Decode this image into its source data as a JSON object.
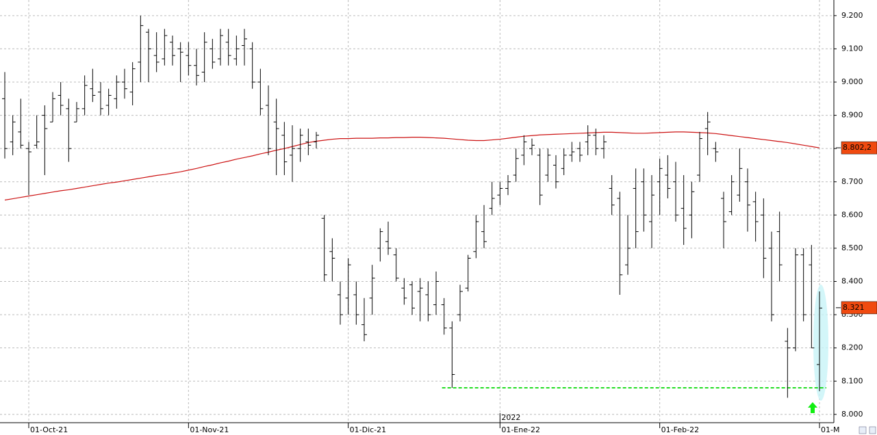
{
  "chart_data": {
    "type": "ohlc",
    "categories": [
      null,
      null,
      null,
      "01-Oct-21",
      null,
      null,
      null,
      null,
      null,
      null,
      null,
      null,
      null,
      null,
      null,
      null,
      null,
      null,
      null,
      null,
      null,
      null,
      null,
      "01-Nov-21",
      null,
      null,
      null,
      null,
      null,
      null,
      null,
      null,
      null,
      null,
      null,
      null,
      null,
      null,
      null,
      null,
      null,
      null,
      null,
      "01-Dic-21",
      null,
      null,
      null,
      null,
      null,
      null,
      null,
      null,
      null,
      null,
      null,
      null,
      null,
      null,
      null,
      null,
      null,
      null,
      "01-Ene-22",
      null,
      null,
      null,
      null,
      null,
      null,
      null,
      null,
      null,
      null,
      null,
      null,
      null,
      null,
      null,
      null,
      null,
      null,
      null,
      "01-Feb-22",
      null,
      null,
      null,
      null,
      null,
      null,
      null,
      null,
      null,
      null,
      null,
      null,
      null,
      null,
      null,
      null,
      null,
      null,
      null,
      "01-M"
    ],
    "year_label": "2022",
    "ohlc": [
      [
        8.95,
        9.03,
        8.77,
        8.8
      ],
      [
        8.82,
        8.9,
        8.78,
        8.88
      ],
      [
        8.85,
        8.95,
        8.8,
        8.81
      ],
      [
        8.8,
        8.82,
        8.66,
        8.79
      ],
      [
        8.81,
        8.9,
        8.8,
        8.82
      ],
      [
        8.9,
        8.93,
        8.72,
        8.86
      ],
      [
        8.88,
        8.97,
        8.88,
        8.95
      ],
      [
        8.96,
        9.0,
        8.9,
        8.93
      ],
      [
        8.92,
        8.95,
        8.76,
        8.8
      ],
      [
        8.88,
        8.94,
        8.88,
        8.92
      ],
      [
        8.92,
        9.02,
        8.9,
        8.99
      ],
      [
        8.98,
        9.04,
        8.94,
        8.96
      ],
      [
        8.97,
        9.0,
        8.9,
        8.92
      ],
      [
        8.93,
        8.98,
        8.9,
        8.96
      ],
      [
        8.95,
        9.02,
        8.92,
        9.0
      ],
      [
        9.0,
        9.04,
        8.95,
        8.98
      ],
      [
        8.97,
        9.06,
        8.93,
        9.04
      ],
      [
        9.06,
        9.2,
        9.0,
        9.17
      ],
      [
        9.15,
        9.16,
        9.0,
        9.1
      ],
      [
        9.08,
        9.15,
        9.03,
        9.06
      ],
      [
        9.07,
        9.16,
        9.05,
        9.14
      ],
      [
        9.12,
        9.14,
        9.05,
        9.08
      ],
      [
        9.1,
        9.12,
        9.0,
        9.09
      ],
      [
        9.08,
        9.12,
        9.02,
        9.05
      ],
      [
        9.05,
        9.1,
        8.99,
        9.02
      ],
      [
        9.03,
        9.15,
        9.0,
        9.12
      ],
      [
        9.1,
        9.13,
        9.04,
        9.06
      ],
      [
        9.07,
        9.16,
        9.05,
        9.14
      ],
      [
        9.12,
        9.16,
        9.05,
        9.08
      ],
      [
        9.07,
        9.14,
        9.05,
        9.1
      ],
      [
        9.11,
        9.16,
        9.05,
        9.13
      ],
      [
        9.1,
        9.12,
        8.98,
        9.0
      ],
      [
        9.0,
        9.04,
        8.9,
        8.92
      ],
      [
        8.93,
        8.99,
        8.78,
        8.8
      ],
      [
        8.88,
        8.95,
        8.72,
        8.86
      ],
      [
        8.84,
        8.88,
        8.72,
        8.76
      ],
      [
        8.78,
        8.87,
        8.7,
        8.8
      ],
      [
        8.8,
        8.86,
        8.76,
        8.84
      ],
      [
        8.82,
        8.86,
        8.78,
        8.81
      ],
      [
        8.82,
        8.85,
        8.8,
        8.84
      ],
      [
        8.59,
        8.6,
        8.4,
        8.42
      ],
      [
        8.49,
        8.53,
        8.4,
        8.47
      ],
      [
        8.36,
        8.4,
        8.27,
        8.3
      ],
      [
        8.35,
        8.47,
        8.3,
        8.45
      ],
      [
        8.36,
        8.4,
        8.27,
        8.3
      ],
      [
        8.27,
        8.35,
        8.22,
        8.24
      ],
      [
        8.35,
        8.45,
        8.3,
        8.41
      ],
      [
        8.5,
        8.56,
        8.46,
        8.55
      ],
      [
        8.52,
        8.58,
        8.48,
        8.5
      ],
      [
        8.48,
        8.5,
        8.4,
        8.41
      ],
      [
        8.38,
        8.41,
        8.33,
        8.35
      ],
      [
        8.39,
        8.4,
        8.3,
        8.32
      ],
      [
        8.37,
        8.41,
        8.28,
        8.38
      ],
      [
        8.36,
        8.4,
        8.28,
        8.3
      ],
      [
        8.33,
        8.43,
        8.3,
        8.4
      ],
      [
        8.33,
        8.35,
        8.24,
        8.26
      ],
      [
        8.26,
        8.28,
        8.08,
        8.12
      ],
      [
        8.3,
        8.39,
        8.28,
        8.37
      ],
      [
        8.38,
        8.48,
        8.37,
        8.47
      ],
      [
        8.49,
        8.6,
        8.47,
        8.58
      ],
      [
        8.55,
        8.63,
        8.5,
        8.52
      ],
      [
        8.62,
        8.7,
        8.6,
        8.65
      ],
      [
        8.66,
        8.7,
        8.63,
        8.68
      ],
      [
        8.68,
        8.72,
        8.66,
        8.7
      ],
      [
        8.72,
        8.8,
        8.7,
        8.77
      ],
      [
        8.78,
        8.84,
        8.75,
        8.82
      ],
      [
        8.8,
        8.83,
        8.78,
        8.81
      ],
      [
        8.78,
        8.8,
        8.63,
        8.66
      ],
      [
        8.72,
        8.8,
        8.7,
        8.78
      ],
      [
        8.75,
        8.78,
        8.68,
        8.7
      ],
      [
        8.74,
        8.8,
        8.72,
        8.78
      ],
      [
        8.78,
        8.82,
        8.76,
        8.79
      ],
      [
        8.8,
        8.82,
        8.76,
        8.78
      ],
      [
        8.82,
        8.87,
        8.78,
        8.84
      ],
      [
        8.84,
        8.86,
        8.78,
        8.8
      ],
      [
        8.8,
        8.84,
        8.77,
        8.82
      ],
      [
        8.68,
        8.72,
        8.6,
        8.63
      ],
      [
        8.65,
        8.67,
        8.36,
        8.42
      ],
      [
        8.45,
        8.6,
        8.42,
        8.5
      ],
      [
        8.68,
        8.74,
        8.5,
        8.55
      ],
      [
        8.7,
        8.74,
        8.55,
        8.6
      ],
      [
        8.58,
        8.72,
        8.5,
        8.66
      ],
      [
        8.7,
        8.77,
        8.6,
        8.74
      ],
      [
        8.72,
        8.78,
        8.65,
        8.68
      ],
      [
        8.7,
        8.76,
        8.58,
        8.6
      ],
      [
        8.62,
        8.72,
        8.51,
        8.56
      ],
      [
        8.6,
        8.7,
        8.53,
        8.67
      ],
      [
        8.72,
        8.85,
        8.7,
        8.83
      ],
      [
        8.86,
        8.91,
        8.78,
        8.88
      ],
      [
        8.8,
        8.82,
        8.76,
        8.79
      ],
      [
        8.65,
        8.67,
        8.5,
        8.58
      ],
      [
        8.61,
        8.72,
        8.6,
        8.7
      ],
      [
        8.66,
        8.8,
        8.64,
        8.74
      ],
      [
        8.7,
        8.74,
        8.55,
        8.63
      ],
      [
        8.64,
        8.67,
        8.52,
        8.58
      ],
      [
        8.6,
        8.65,
        8.41,
        8.47
      ],
      [
        8.5,
        8.55,
        8.28,
        8.3
      ],
      [
        8.55,
        8.61,
        8.4,
        8.45
      ],
      [
        8.22,
        8.26,
        8.05,
        8.2
      ],
      [
        8.2,
        8.5,
        8.19,
        8.48
      ],
      [
        8.48,
        8.5,
        8.28,
        8.3
      ],
      [
        8.45,
        8.51,
        8.2,
        8.2
      ],
      [
        8.15,
        8.37,
        8.07,
        8.32
      ]
    ],
    "color": "#000000",
    "moving_average": {
      "color": "#cc1111",
      "values": [
        8.645,
        8.649,
        8.653,
        8.657,
        8.661,
        8.665,
        8.669,
        8.673,
        8.676,
        8.68,
        8.684,
        8.688,
        8.692,
        8.696,
        8.699,
        8.703,
        8.707,
        8.711,
        8.715,
        8.719,
        8.722,
        8.726,
        8.73,
        8.735,
        8.74,
        8.746,
        8.751,
        8.757,
        8.762,
        8.768,
        8.773,
        8.778,
        8.784,
        8.789,
        8.795,
        8.8,
        8.806,
        8.812,
        8.818,
        8.822,
        8.825,
        8.828,
        8.83,
        8.83,
        8.831,
        8.831,
        8.831,
        8.832,
        8.832,
        8.833,
        8.833,
        8.834,
        8.834,
        8.833,
        8.832,
        8.831,
        8.829,
        8.827,
        8.825,
        8.824,
        8.824,
        8.826,
        8.828,
        8.831,
        8.834,
        8.837,
        8.839,
        8.841,
        8.842,
        8.843,
        8.844,
        8.845,
        8.846,
        8.847,
        8.848,
        8.849,
        8.849,
        8.848,
        8.847,
        8.846,
        8.846,
        8.847,
        8.848,
        8.849,
        8.85,
        8.85,
        8.849,
        8.848,
        8.847,
        8.845,
        8.842,
        8.839,
        8.836,
        8.833,
        8.83,
        8.827,
        8.824,
        8.821,
        8.818,
        8.814,
        8.81,
        8.806,
        8.802
      ]
    },
    "price_markers": [
      {
        "value": 8.8022,
        "label": "8.802,2",
        "color": "#f04a10"
      },
      {
        "value": 8.321,
        "label": "8.321",
        "color": "#f04a10"
      }
    ],
    "support_line": {
      "value": 8.08,
      "color": "#22dd22"
    },
    "ylim": [
      7.975,
      9.247
    ],
    "yticks": [
      {
        "value": 8.0,
        "label": "8.000"
      },
      {
        "value": 8.1,
        "label": "8.100"
      },
      {
        "value": 8.2,
        "label": "8.200"
      },
      {
        "value": 8.3,
        "label": "8.300"
      },
      {
        "value": 8.4,
        "label": "8.400"
      },
      {
        "value": 8.5,
        "label": "8.500"
      },
      {
        "value": 8.6,
        "label": "8.600"
      },
      {
        "value": 8.7,
        "label": "8.700"
      },
      {
        "value": 8.8,
        "label": "8.800"
      },
      {
        "value": 8.9,
        "label": "8.900"
      },
      {
        "value": 9.0,
        "label": "9.000"
      },
      {
        "value": 9.1,
        "label": "9.100"
      },
      {
        "value": 9.2,
        "label": "9.200"
      }
    ],
    "grid": true
  }
}
